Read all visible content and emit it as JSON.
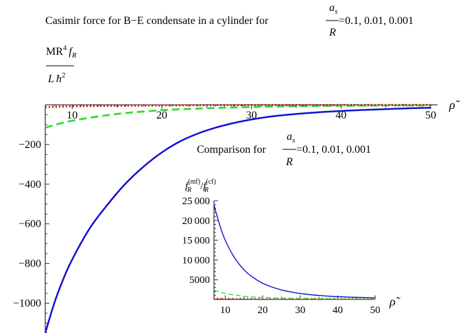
{
  "main_chart": {
    "title_prefix": "Casimir force for B−E condensate in a cylinder for ",
    "title_frac_num": "a",
    "title_frac_num_sub": "s",
    "title_frac_den": "R",
    "title_suffix": "=0.1, 0.01, 0.001",
    "ylabel_num_main": "MR",
    "ylabel_num_sup": "4",
    "ylabel_num_f": "f",
    "ylabel_num_sub": "R",
    "ylabel_den_L": "L",
    "ylabel_den_hbar": "ħ",
    "ylabel_den_sup": "2",
    "xlabel": "ρ̃"
  },
  "inset_chart": {
    "title_prefix": "Comparison for ",
    "title_frac_num": "a",
    "title_frac_num_sub": "s",
    "title_frac_den": "R",
    "title_suffix": "=0.1, 0.01, 0.001",
    "ylabel_f1": "f",
    "ylabel_sub1": "R",
    "ylabel_sup1": "(mf)",
    "ylabel_slash": "/",
    "ylabel_f2": "f",
    "ylabel_sub2": "R",
    "ylabel_sup2": "(cf)",
    "xlabel": "ρ̃"
  },
  "chart_data": [
    {
      "type": "line",
      "xlim": [
        7,
        50
      ],
      "ylim": [
        -1150,
        0
      ],
      "x_ticks": [
        10,
        20,
        30,
        40,
        50
      ],
      "y_ticks": [
        -200,
        -400,
        -600,
        -800,
        -1000
      ],
      "x_tick_labels": [
        "10",
        "20",
        "30",
        "40",
        "50"
      ],
      "y_tick_labels": [
        "−200",
        "−400",
        "−600",
        "−800",
        "−1000"
      ],
      "axes_position": "y-axis at x=7, x-axis at top (y=0)",
      "series": [
        {
          "color": "#1010d0",
          "style": "solid",
          "x": [
            7,
            8,
            9,
            10,
            12,
            14,
            16,
            18,
            20,
            22,
            24,
            26,
            28,
            30,
            32,
            34,
            36,
            38,
            40,
            42,
            44,
            46,
            48,
            50
          ],
          "y": [
            -1150,
            -1000,
            -880,
            -780,
            -620,
            -500,
            -395,
            -310,
            -240,
            -185,
            -145,
            -115,
            -92,
            -74,
            -60,
            -50,
            -42,
            -36,
            -31,
            -27,
            -23,
            -20,
            -17,
            -15
          ]
        },
        {
          "color": "#33dd33",
          "style": "dashed",
          "x": [
            7,
            10,
            15,
            20,
            25,
            30,
            35,
            40,
            45,
            50
          ],
          "y": [
            -115,
            -80,
            -46,
            -27,
            -17,
            -11,
            -7,
            -5,
            -3,
            -2
          ]
        },
        {
          "color": "#dd1111",
          "style": "dotted",
          "x": [
            7,
            10,
            20,
            30,
            40,
            50
          ],
          "y": [
            -12,
            -8,
            -3,
            -1.5,
            -0.8,
            -0.5
          ]
        }
      ]
    },
    {
      "type": "line",
      "xlim": [
        7,
        50
      ],
      "ylim": [
        0,
        25000
      ],
      "x_ticks": [
        10,
        20,
        30,
        40,
        50
      ],
      "y_ticks": [
        5000,
        10000,
        15000,
        20000,
        25000
      ],
      "x_tick_labels": [
        "10",
        "20",
        "30",
        "40",
        "50"
      ],
      "y_tick_labels": [
        "5000",
        "10 000",
        "15 000",
        "20 000",
        "25 000"
      ],
      "series": [
        {
          "color": "#1010d0",
          "style": "solid",
          "x": [
            7,
            8,
            9,
            10,
            12,
            14,
            16,
            18,
            20,
            22,
            25,
            28,
            30,
            35,
            40,
            45,
            50
          ],
          "y": [
            24000,
            20500,
            17500,
            15000,
            11300,
            8600,
            6600,
            5200,
            4100,
            3300,
            2400,
            1800,
            1500,
            1000,
            700,
            520,
            400
          ]
        },
        {
          "color": "#33dd33",
          "style": "dashed",
          "x": [
            7,
            10,
            15,
            20,
            25,
            30,
            40,
            50
          ],
          "y": [
            2400,
            1500,
            800,
            500,
            330,
            230,
            130,
            90
          ]
        },
        {
          "color": "#dd1111",
          "style": "dotted",
          "x": [
            7,
            10,
            20,
            30,
            50
          ],
          "y": [
            240,
            150,
            50,
            25,
            10
          ]
        }
      ]
    }
  ]
}
